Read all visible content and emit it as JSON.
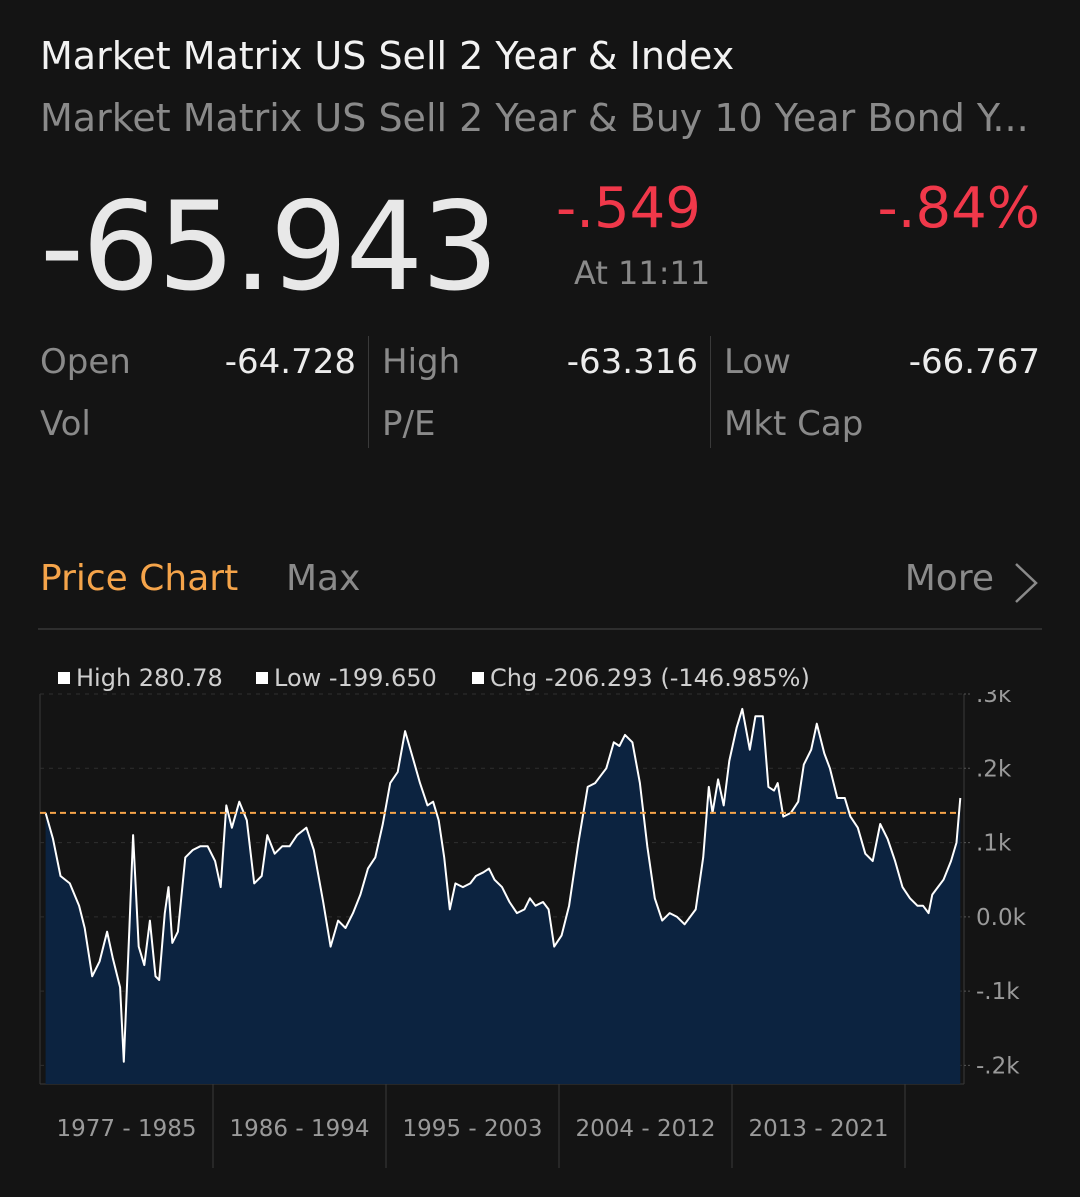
{
  "header": {
    "title": "Market Matrix US Sell 2 Year & Index",
    "subtitle": "Market Matrix US Sell 2 Year & Buy 10 Year Bond Y..."
  },
  "quote": {
    "price": "-65.943",
    "change": "-.549",
    "time": "At 11:11",
    "change_pct": "-.84%",
    "change_color": "#f0384a"
  },
  "stats": {
    "open_label": "Open",
    "open_value": "-64.728",
    "vol_label": "Vol",
    "vol_value": "",
    "high_label": "High",
    "high_value": "-63.316",
    "pe_label": "P/E",
    "pe_value": "",
    "low_label": "Low",
    "low_value": "-66.767",
    "mktcap_label": "Mkt Cap",
    "mktcap_value": ""
  },
  "chart_header": {
    "tab": "Price Chart",
    "range": "Max",
    "more": "More",
    "accent_color": "#f5a44a"
  },
  "legend": {
    "high": "High 280.78",
    "low": "Low -199.650",
    "chg": "Chg -206.293 (-146.985%)"
  },
  "chart_data": {
    "type": "area",
    "x_periods": [
      "1977 - 1985",
      "1986 - 1994",
      "1995 - 2003",
      "2004 - 2012",
      "2013 - 2021"
    ],
    "y_ticks": [
      ".3k",
      ".2k",
      ".1k",
      "0.0k",
      "-.1k",
      "-.2k"
    ],
    "y_tick_values": [
      300,
      200,
      100,
      0,
      -100,
      -200
    ],
    "ylim": [
      -225,
      300
    ],
    "xlim": [
      1976.6,
      2026.2
    ],
    "reference_line": 140,
    "reference_color": "#f5a44a",
    "line_color": "#ffffff",
    "fill_color": "#0c2340",
    "grid": "dashed",
    "legend_placement": "top-left",
    "series": [
      {
        "points": [
          [
            1976.9,
            140
          ],
          [
            1977.3,
            105
          ],
          [
            1977.7,
            55
          ],
          [
            1978.2,
            45
          ],
          [
            1978.7,
            15
          ],
          [
            1979.0,
            -15
          ],
          [
            1979.4,
            -80
          ],
          [
            1979.8,
            -60
          ],
          [
            1980.2,
            -20
          ],
          [
            1980.5,
            -55
          ],
          [
            1980.9,
            -95
          ],
          [
            1981.1,
            -195
          ],
          [
            1981.4,
            -15
          ],
          [
            1981.6,
            110
          ],
          [
            1981.9,
            -40
          ],
          [
            1982.2,
            -65
          ],
          [
            1982.5,
            -5
          ],
          [
            1982.8,
            -80
          ],
          [
            1983.0,
            -85
          ],
          [
            1983.3,
            5
          ],
          [
            1983.5,
            40
          ],
          [
            1983.7,
            -35
          ],
          [
            1984.0,
            -20
          ],
          [
            1984.4,
            80
          ],
          [
            1984.8,
            90
          ],
          [
            1985.2,
            95
          ],
          [
            1985.6,
            95
          ],
          [
            1986.0,
            75
          ],
          [
            1986.3,
            40
          ],
          [
            1986.6,
            150
          ],
          [
            1986.9,
            120
          ],
          [
            1987.3,
            155
          ],
          [
            1987.7,
            130
          ],
          [
            1988.1,
            45
          ],
          [
            1988.5,
            55
          ],
          [
            1988.8,
            110
          ],
          [
            1989.2,
            85
          ],
          [
            1989.6,
            95
          ],
          [
            1990.0,
            95
          ],
          [
            1990.4,
            110
          ],
          [
            1990.9,
            120
          ],
          [
            1991.3,
            90
          ],
          [
            1991.8,
            20
          ],
          [
            1992.2,
            -40
          ],
          [
            1992.6,
            -5
          ],
          [
            1993.0,
            -15
          ],
          [
            1993.4,
            5
          ],
          [
            1993.8,
            30
          ],
          [
            1994.2,
            65
          ],
          [
            1994.6,
            80
          ],
          [
            1995.0,
            125
          ],
          [
            1995.4,
            180
          ],
          [
            1995.8,
            195
          ],
          [
            1996.2,
            250
          ],
          [
            1996.6,
            215
          ],
          [
            1997.0,
            180
          ],
          [
            1997.4,
            150
          ],
          [
            1997.7,
            155
          ],
          [
            1998.0,
            130
          ],
          [
            1998.3,
            80
          ],
          [
            1998.6,
            10
          ],
          [
            1998.9,
            45
          ],
          [
            1999.3,
            40
          ],
          [
            1999.7,
            45
          ],
          [
            2000.0,
            55
          ],
          [
            2000.4,
            60
          ],
          [
            2000.7,
            65
          ],
          [
            2001.0,
            50
          ],
          [
            2001.4,
            40
          ],
          [
            2001.8,
            20
          ],
          [
            2002.2,
            5
          ],
          [
            2002.6,
            10
          ],
          [
            2002.9,
            25
          ],
          [
            2003.2,
            15
          ],
          [
            2003.6,
            20
          ],
          [
            2003.9,
            10
          ],
          [
            2004.2,
            -40
          ],
          [
            2004.6,
            -25
          ],
          [
            2005.0,
            15
          ],
          [
            2005.5,
            100
          ],
          [
            2006.0,
            175
          ],
          [
            2006.4,
            180
          ],
          [
            2006.7,
            190
          ],
          [
            2007.0,
            200
          ],
          [
            2007.4,
            235
          ],
          [
            2007.7,
            230
          ],
          [
            2008.0,
            245
          ],
          [
            2008.4,
            235
          ],
          [
            2008.8,
            180
          ],
          [
            2009.2,
            95
          ],
          [
            2009.6,
            25
          ],
          [
            2010.0,
            -5
          ],
          [
            2010.4,
            5
          ],
          [
            2010.8,
            0
          ],
          [
            2011.2,
            -10
          ],
          [
            2011.8,
            10
          ],
          [
            2012.2,
            80
          ],
          [
            2012.5,
            175
          ],
          [
            2012.7,
            140
          ],
          [
            2013.0,
            185
          ],
          [
            2013.3,
            150
          ],
          [
            2013.6,
            210
          ],
          [
            2014.0,
            255
          ],
          [
            2014.3,
            280
          ],
          [
            2014.7,
            225
          ],
          [
            2015.0,
            270
          ],
          [
            2015.4,
            270
          ],
          [
            2015.7,
            175
          ],
          [
            2016.0,
            170
          ],
          [
            2016.2,
            180
          ],
          [
            2016.5,
            135
          ],
          [
            2016.9,
            140
          ],
          [
            2017.3,
            155
          ],
          [
            2017.6,
            205
          ],
          [
            2018.0,
            225
          ],
          [
            2018.3,
            260
          ],
          [
            2018.7,
            220
          ],
          [
            2019.0,
            200
          ],
          [
            2019.4,
            160
          ],
          [
            2019.8,
            160
          ],
          [
            2020.1,
            135
          ],
          [
            2020.5,
            120
          ],
          [
            2020.9,
            85
          ],
          [
            2021.3,
            75
          ],
          [
            2021.7,
            125
          ],
          [
            2022.1,
            105
          ],
          [
            2022.5,
            75
          ],
          [
            2022.9,
            40
          ],
          [
            2023.3,
            25
          ],
          [
            2023.7,
            15
          ],
          [
            2024.0,
            15
          ],
          [
            2024.3,
            5
          ],
          [
            2024.5,
            30
          ],
          [
            2024.8,
            40
          ],
          [
            2025.1,
            50
          ],
          [
            2025.5,
            75
          ],
          [
            2025.8,
            100
          ],
          [
            2026.0,
            160
          ]
        ]
      }
    ]
  }
}
